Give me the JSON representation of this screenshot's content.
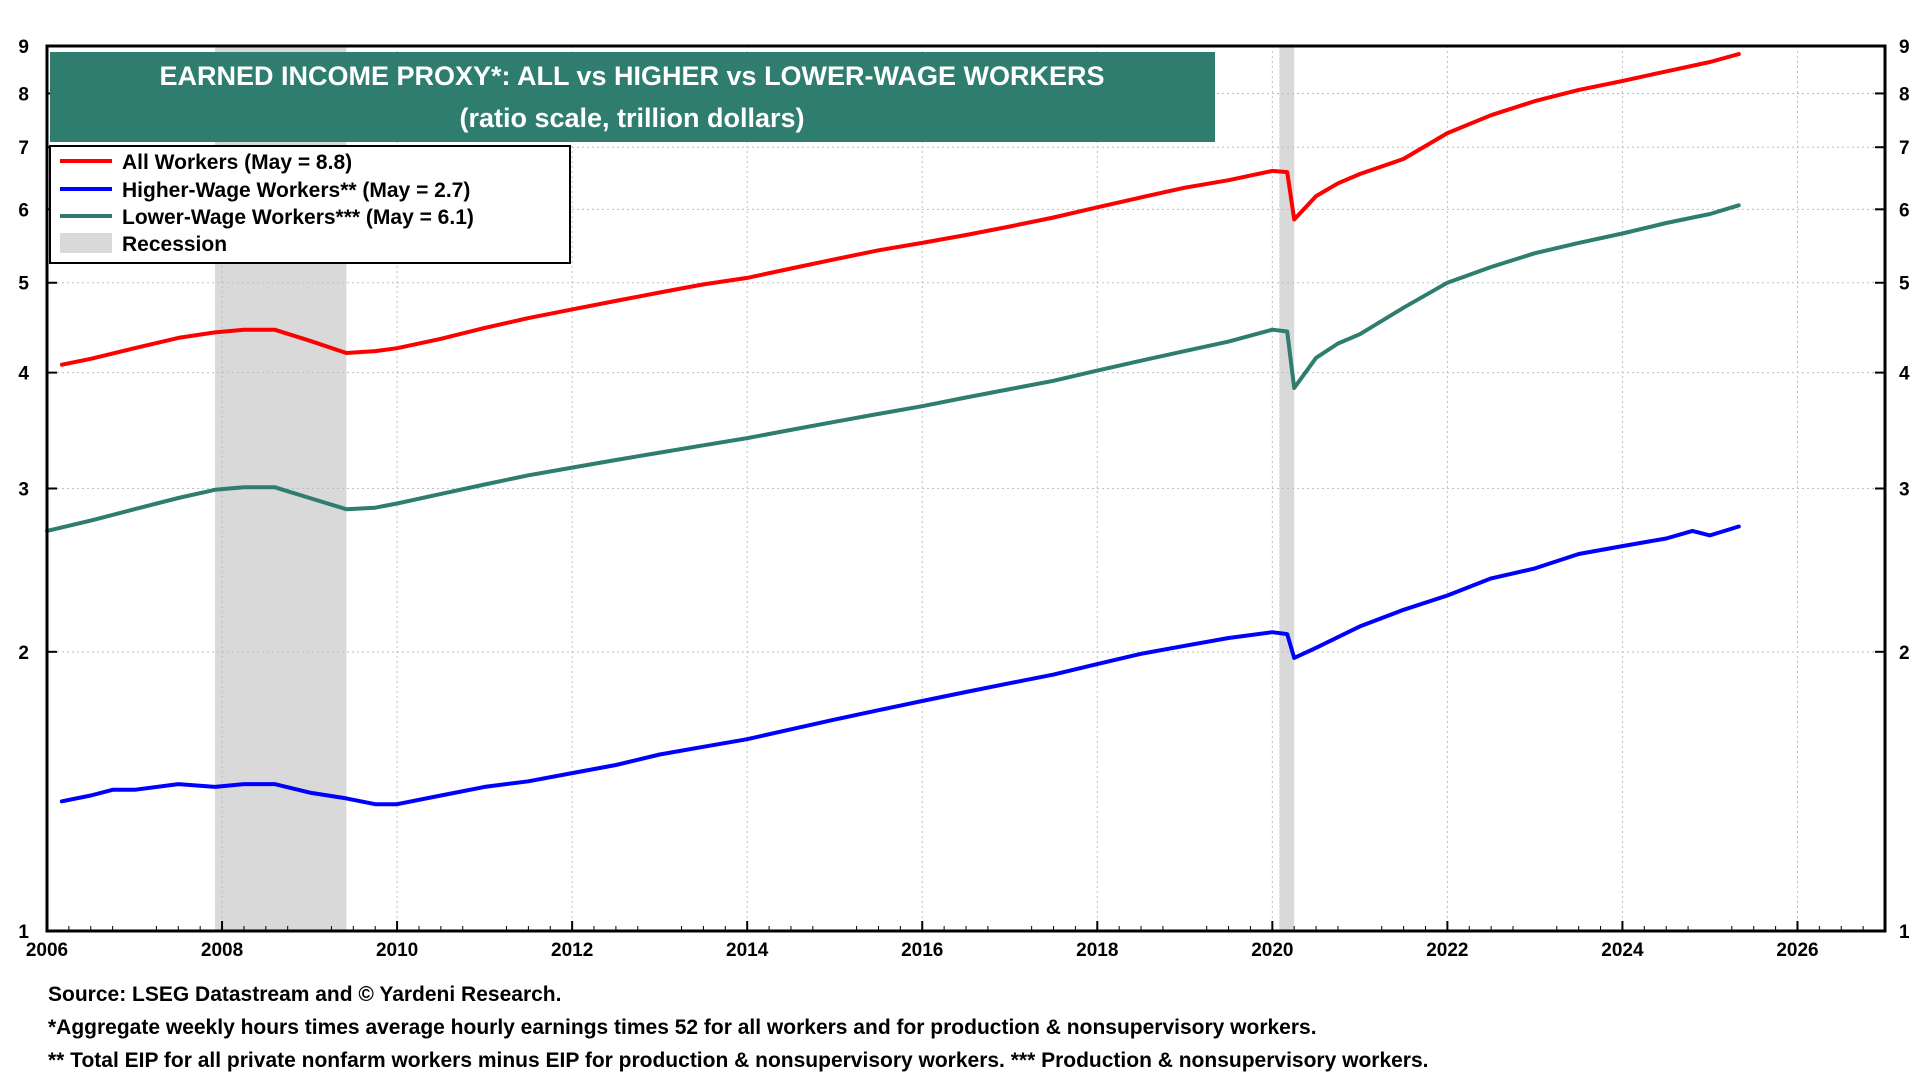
{
  "chart_data": {
    "type": "line",
    "title": "EARNED INCOME PROXY*: ALL vs HIGHER vs LOWER-WAGE WORKERS",
    "subtitle": "(ratio scale, trillion dollars)",
    "y_scale": "log",
    "xlim": [
      2006,
      2027
    ],
    "ylim": [
      1,
      9
    ],
    "x_ticks": [
      "2006",
      "2008",
      "2010",
      "2012",
      "2014",
      "2016",
      "2018",
      "2020",
      "2022",
      "2024",
      "2026"
    ],
    "y_ticks": [
      "1",
      "2",
      "3",
      "4",
      "5",
      "6",
      "7",
      "8",
      "9"
    ],
    "grid": true,
    "legend_position": "top-left",
    "recessions": [
      {
        "start": 2007.92,
        "end": 2009.42
      },
      {
        "start": 2020.08,
        "end": 2020.25
      }
    ],
    "series": [
      {
        "name": "All Workers (May = 8.8)",
        "color": "#ff0000",
        "points": [
          [
            2006.17,
            4.08
          ],
          [
            2006.5,
            4.14
          ],
          [
            2007.0,
            4.25
          ],
          [
            2007.5,
            4.36
          ],
          [
            2007.92,
            4.42
          ],
          [
            2008.25,
            4.45
          ],
          [
            2008.6,
            4.45
          ],
          [
            2009.0,
            4.33
          ],
          [
            2009.42,
            4.2
          ],
          [
            2009.75,
            4.22
          ],
          [
            2010.0,
            4.25
          ],
          [
            2010.5,
            4.35
          ],
          [
            2011.0,
            4.47
          ],
          [
            2011.5,
            4.58
          ],
          [
            2012.0,
            4.68
          ],
          [
            2012.5,
            4.78
          ],
          [
            2013.0,
            4.88
          ],
          [
            2013.5,
            4.98
          ],
          [
            2014.0,
            5.06
          ],
          [
            2014.5,
            5.18
          ],
          [
            2015.0,
            5.3
          ],
          [
            2015.5,
            5.42
          ],
          [
            2016.0,
            5.52
          ],
          [
            2016.5,
            5.63
          ],
          [
            2017.0,
            5.75
          ],
          [
            2017.5,
            5.88
          ],
          [
            2018.0,
            6.03
          ],
          [
            2018.5,
            6.18
          ],
          [
            2019.0,
            6.33
          ],
          [
            2019.5,
            6.45
          ],
          [
            2020.0,
            6.6
          ],
          [
            2020.17,
            6.58
          ],
          [
            2020.25,
            5.85
          ],
          [
            2020.5,
            6.2
          ],
          [
            2020.75,
            6.4
          ],
          [
            2021.0,
            6.55
          ],
          [
            2021.5,
            6.8
          ],
          [
            2022.0,
            7.25
          ],
          [
            2022.5,
            7.58
          ],
          [
            2023.0,
            7.85
          ],
          [
            2023.5,
            8.07
          ],
          [
            2024.0,
            8.25
          ],
          [
            2024.5,
            8.45
          ],
          [
            2025.0,
            8.65
          ],
          [
            2025.33,
            8.82
          ]
        ]
      },
      {
        "name": "Higher-Wage Workers** (May = 2.7)",
        "color": "#0000ff",
        "points": [
          [
            2006.17,
            1.38
          ],
          [
            2006.5,
            1.4
          ],
          [
            2006.75,
            1.42
          ],
          [
            2007.0,
            1.42
          ],
          [
            2007.5,
            1.44
          ],
          [
            2007.92,
            1.43
          ],
          [
            2008.25,
            1.44
          ],
          [
            2008.6,
            1.44
          ],
          [
            2009.0,
            1.41
          ],
          [
            2009.42,
            1.39
          ],
          [
            2009.75,
            1.37
          ],
          [
            2010.0,
            1.37
          ],
          [
            2010.5,
            1.4
          ],
          [
            2011.0,
            1.43
          ],
          [
            2011.5,
            1.45
          ],
          [
            2012.0,
            1.48
          ],
          [
            2012.5,
            1.51
          ],
          [
            2013.0,
            1.55
          ],
          [
            2013.5,
            1.58
          ],
          [
            2014.0,
            1.61
          ],
          [
            2014.5,
            1.65
          ],
          [
            2015.0,
            1.69
          ],
          [
            2015.5,
            1.73
          ],
          [
            2016.0,
            1.77
          ],
          [
            2016.5,
            1.81
          ],
          [
            2017.0,
            1.85
          ],
          [
            2017.5,
            1.89
          ],
          [
            2018.0,
            1.94
          ],
          [
            2018.5,
            1.99
          ],
          [
            2019.0,
            2.03
          ],
          [
            2019.5,
            2.07
          ],
          [
            2020.0,
            2.1
          ],
          [
            2020.17,
            2.09
          ],
          [
            2020.25,
            1.97
          ],
          [
            2020.5,
            2.02
          ],
          [
            2021.0,
            2.13
          ],
          [
            2021.5,
            2.22
          ],
          [
            2022.0,
            2.3
          ],
          [
            2022.5,
            2.4
          ],
          [
            2023.0,
            2.46
          ],
          [
            2023.5,
            2.55
          ],
          [
            2024.0,
            2.6
          ],
          [
            2024.5,
            2.65
          ],
          [
            2024.8,
            2.7
          ],
          [
            2025.0,
            2.67
          ],
          [
            2025.33,
            2.73
          ]
        ]
      },
      {
        "name": "Lower-Wage Workers*** (May = 6.1)",
        "color": "#2e7d6e",
        "points": [
          [
            2006.0,
            2.7
          ],
          [
            2006.5,
            2.77
          ],
          [
            2007.0,
            2.85
          ],
          [
            2007.5,
            2.93
          ],
          [
            2007.92,
            2.99
          ],
          [
            2008.25,
            3.01
          ],
          [
            2008.6,
            3.01
          ],
          [
            2009.0,
            2.93
          ],
          [
            2009.42,
            2.85
          ],
          [
            2009.75,
            2.86
          ],
          [
            2010.0,
            2.89
          ],
          [
            2010.5,
            2.96
          ],
          [
            2011.0,
            3.03
          ],
          [
            2011.5,
            3.1
          ],
          [
            2012.0,
            3.16
          ],
          [
            2012.5,
            3.22
          ],
          [
            2013.0,
            3.28
          ],
          [
            2013.5,
            3.34
          ],
          [
            2014.0,
            3.4
          ],
          [
            2014.5,
            3.47
          ],
          [
            2015.0,
            3.54
          ],
          [
            2015.5,
            3.61
          ],
          [
            2016.0,
            3.68
          ],
          [
            2016.5,
            3.76
          ],
          [
            2017.0,
            3.84
          ],
          [
            2017.5,
            3.92
          ],
          [
            2018.0,
            4.02
          ],
          [
            2018.5,
            4.12
          ],
          [
            2019.0,
            4.22
          ],
          [
            2019.5,
            4.32
          ],
          [
            2020.0,
            4.45
          ],
          [
            2020.17,
            4.43
          ],
          [
            2020.25,
            3.85
          ],
          [
            2020.5,
            4.15
          ],
          [
            2020.75,
            4.3
          ],
          [
            2021.0,
            4.4
          ],
          [
            2021.5,
            4.7
          ],
          [
            2022.0,
            5.0
          ],
          [
            2022.5,
            5.2
          ],
          [
            2023.0,
            5.38
          ],
          [
            2023.5,
            5.52
          ],
          [
            2024.0,
            5.65
          ],
          [
            2024.5,
            5.8
          ],
          [
            2025.0,
            5.93
          ],
          [
            2025.33,
            6.06
          ]
        ]
      }
    ],
    "legend": {
      "items": [
        {
          "label": "All Workers (May = 8.8)",
          "color": "#ff0000",
          "kind": "line"
        },
        {
          "label": "Higher-Wage Workers** (May = 2.7)",
          "color": "#0000ff",
          "kind": "line"
        },
        {
          "label": "Lower-Wage Workers*** (May = 6.1)",
          "color": "#2e7d6e",
          "kind": "line"
        },
        {
          "label": "Recession",
          "color": "#d9d9d9",
          "kind": "box"
        }
      ]
    }
  },
  "colors": {
    "title_box": "#2e7d6e",
    "recession": "#d9d9d9",
    "grid": "#bfbfbf"
  },
  "footnotes": {
    "source": "Source: LSEG Datastream and © Yardeni Research.",
    "note1": "*Aggregate weekly hours times average hourly earnings times 52 for all workers and for production & nonsupervisory workers.",
    "note2": "** Total EIP for all private nonfarm workers minus EIP for production & nonsupervisory workers. *** Production & nonsupervisory workers."
  }
}
